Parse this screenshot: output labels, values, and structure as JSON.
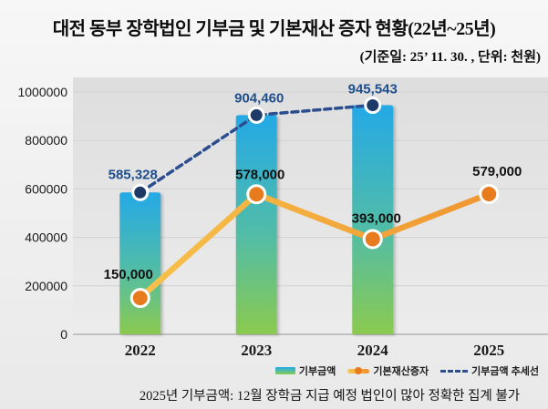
{
  "header": {
    "title": "대전 동부 장학법인 기부금 및 기본재산 증자 현황(22년~25년)",
    "subtitle": "(기준일: 25’ 11. 30. , 단위: 천원)"
  },
  "legend": {
    "items": [
      {
        "label": "기부금액",
        "marker": "bar-gradient-swatch"
      },
      {
        "label": "기본재산증자",
        "marker": "orange-line-dot-swatch"
      },
      {
        "label": "기부금액 추세선",
        "marker": "navy-dash-swatch"
      }
    ]
  },
  "footer": {
    "note": "2025년 기부금액: 12월 장학금 지급 예정 법인이 많아 정확한 집계 불가"
  },
  "colors": {
    "bar_top": "#24a9e6",
    "bar_mid": "#52bda6",
    "bar_bottom": "#8bca4f",
    "line_start": "#f8c94f",
    "line_end": "#ee8e2c",
    "line_dot": "#e87b1e",
    "trend_line": "#2c4d8e",
    "trend_dot": "#1e3a66",
    "trend_label": "#1f4e8c",
    "series_label": "#111111",
    "grid": "#d2d2d2",
    "axis": "#b3b3b3",
    "tick_label": "#1a1a1a",
    "plot_bg_top": "#dedede",
    "plot_bg_bottom": "#ececec"
  },
  "chart_data": {
    "type": "bar",
    "categories": [
      "2022",
      "2023",
      "2024",
      "2025"
    ],
    "series": [
      {
        "name": "기부금액",
        "type": "bar",
        "values": [
          585328,
          904460,
          945543,
          null
        ]
      },
      {
        "name": "기본재산증자",
        "type": "line",
        "values": [
          150000,
          578000,
          393000,
          579000
        ]
      },
      {
        "name": "기부금액 추세선",
        "type": "dashed_line",
        "values": [
          585328,
          904460,
          945543,
          null
        ]
      }
    ],
    "data_labels": {
      "기부금액": [
        "585,328",
        "904,460",
        "945,543"
      ],
      "기본재산증자": [
        "150,000",
        "578,000",
        "393,000",
        "579,000"
      ]
    },
    "title": "대전 동부 장학법인 기부금 및 기본재산 증자 현황(22년~25년)",
    "subtitle": "(기준일: 25’ 11. 30. , 단위: 천원)",
    "xlabel": "",
    "ylabel": "",
    "ylim": [
      0,
      1000000
    ],
    "ytick_step": 200000,
    "yticks": [
      "0",
      "200000",
      "400000",
      "600000",
      "800000",
      "1000000"
    ],
    "grid": true,
    "legend_position": "bottom-right",
    "note": "2025년 기부금액: 12월 장학금 지급 예정 법인이 많아 정확한 집계 불가"
  }
}
